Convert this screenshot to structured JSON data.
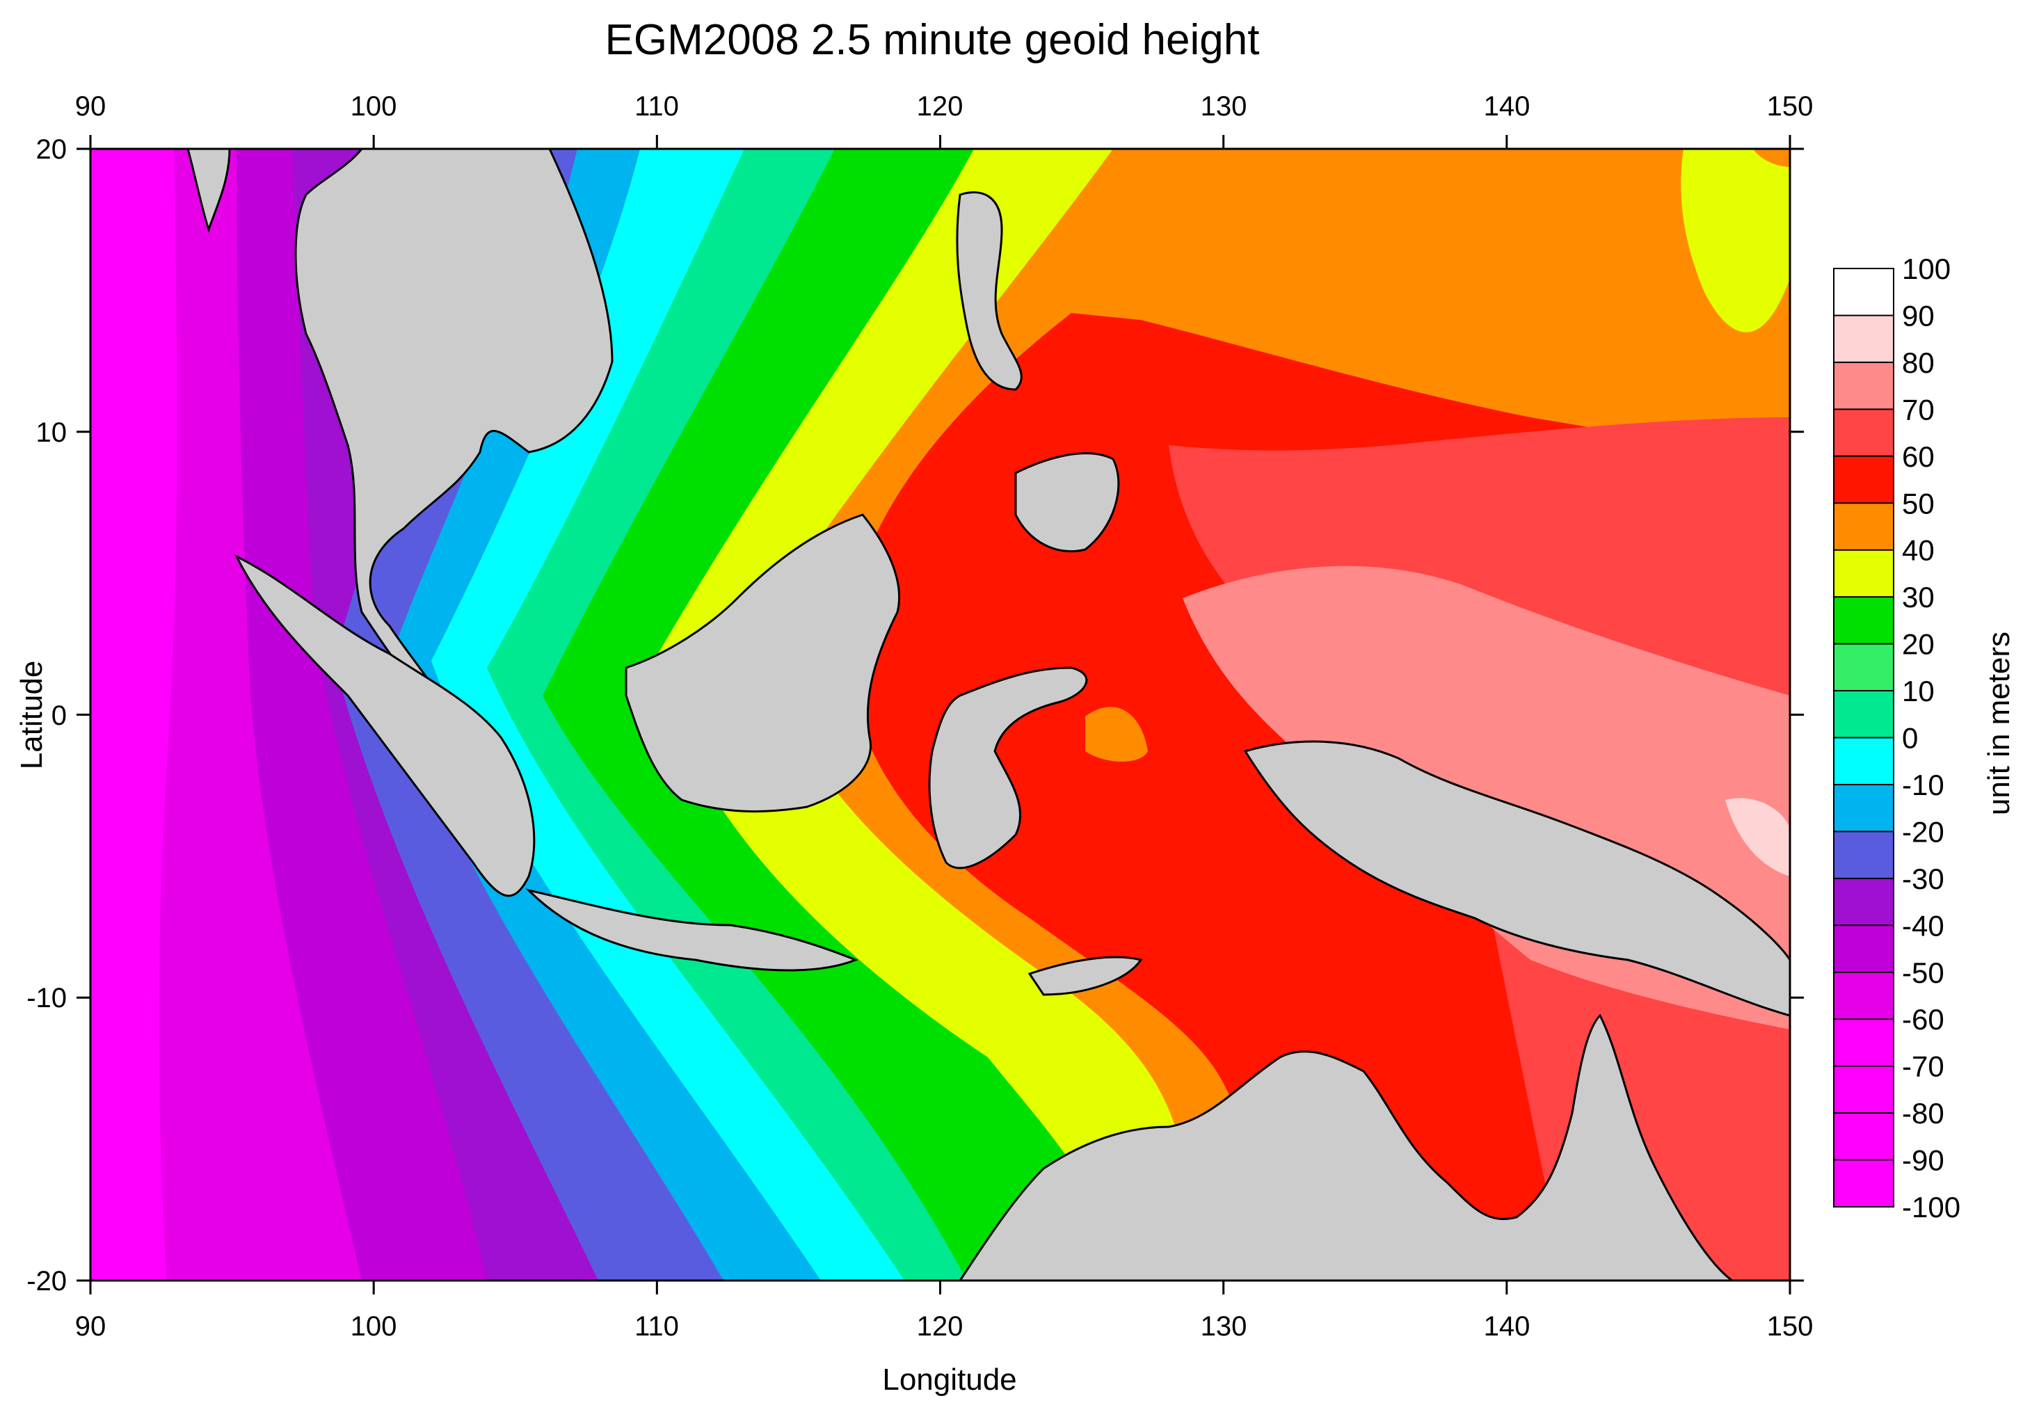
{
  "title": "EGM2008 2.5 minute geoid height",
  "x_axis": {
    "label": "Longitude",
    "range": [
      90,
      150
    ],
    "ticks": [
      "90",
      "100",
      "110",
      "120",
      "130",
      "140",
      "150"
    ]
  },
  "y_axis": {
    "label": "Latitude",
    "range": [
      -20,
      20
    ],
    "ticks": [
      "20",
      "10",
      "0",
      "-10",
      "-20"
    ]
  },
  "colorbar": {
    "label": "unit in meters",
    "levels": [
      {
        "value": "100",
        "color": "#ffffff"
      },
      {
        "value": "90",
        "color": "#ffffff"
      },
      {
        "value": "80",
        "color": "#ffd4d4"
      },
      {
        "value": "70",
        "color": "#ff8a8a"
      },
      {
        "value": "60",
        "color": "#ff4545"
      },
      {
        "value": "50",
        "color": "#ff1500"
      },
      {
        "value": "40",
        "color": "#ff8c00"
      },
      {
        "value": "30",
        "color": "#e4ff00"
      },
      {
        "value": "20",
        "color": "#00e000"
      },
      {
        "value": "10",
        "color": "#33ee66"
      },
      {
        "value": "0",
        "color": "#00e890"
      },
      {
        "value": "-10",
        "color": "#00ffff"
      },
      {
        "value": "-20",
        "color": "#00b4f0"
      },
      {
        "value": "-30",
        "color": "#5a5ce0"
      },
      {
        "value": "-40",
        "color": "#a010d0"
      },
      {
        "value": "-50",
        "color": "#c000d8"
      },
      {
        "value": "-60",
        "color": "#e600e8"
      },
      {
        "value": "-70",
        "color": "#ff00ff"
      },
      {
        "value": "-80",
        "color": "#ff00ff"
      },
      {
        "value": "-90",
        "color": "#ff00ff"
      },
      {
        "value": "-100",
        "color": "#ff00ff"
      }
    ]
  },
  "land_color": "#cccccc"
}
